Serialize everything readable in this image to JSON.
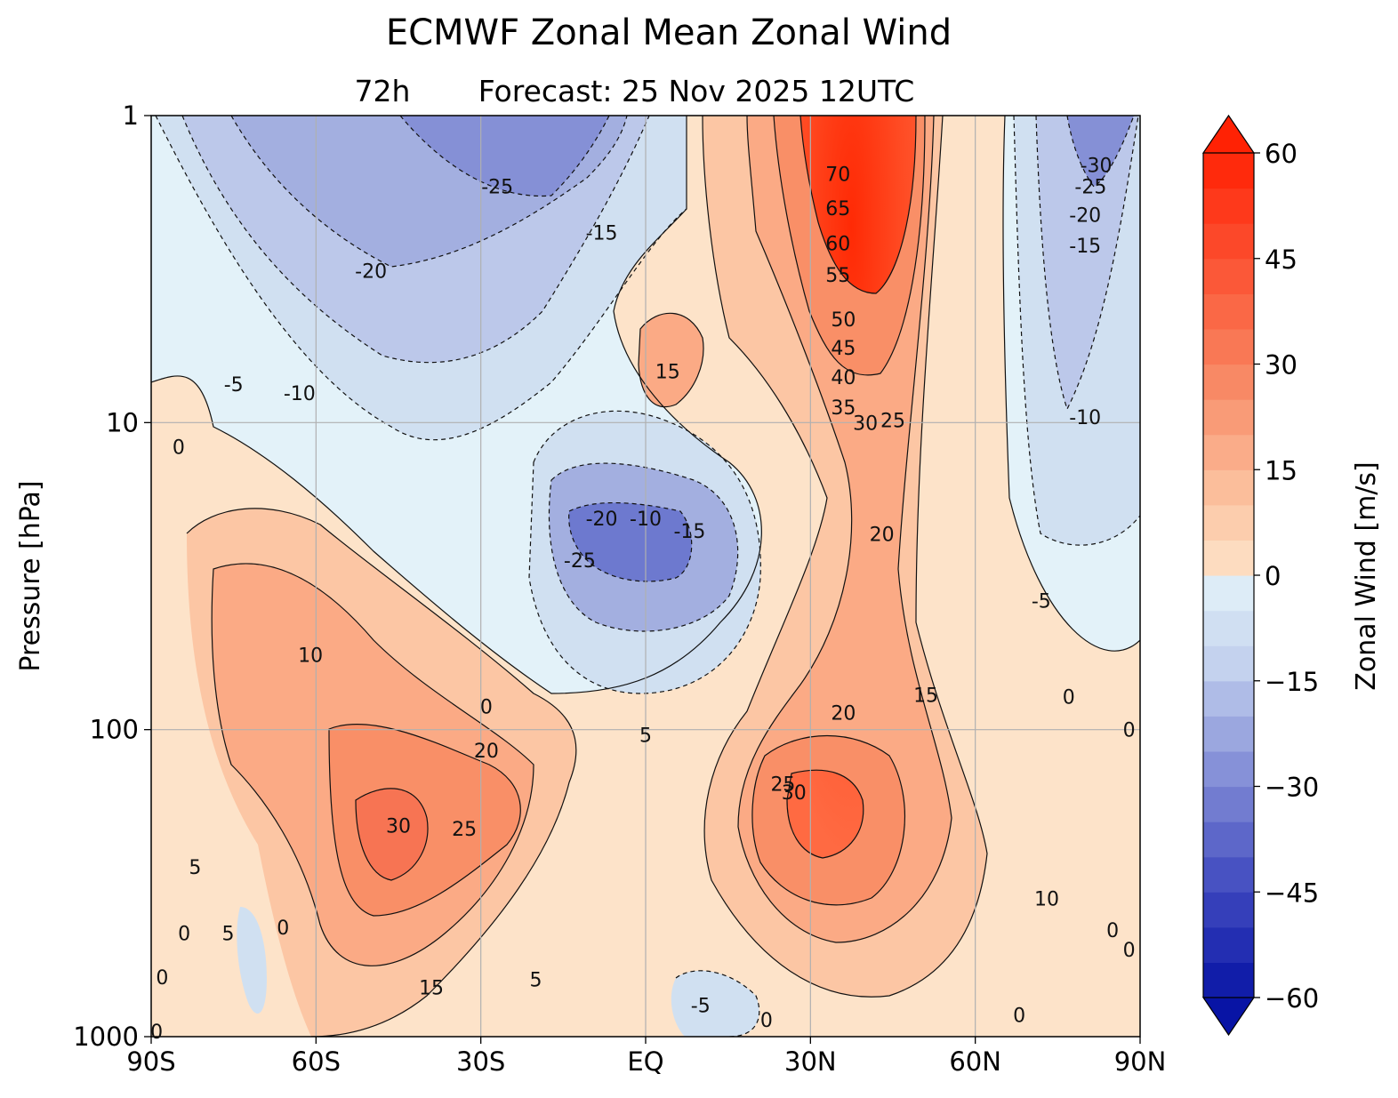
{
  "chart_data": {
    "type": "contour",
    "title": "ECMWF Zonal Mean Zonal Wind",
    "subtitle_left": "72h",
    "subtitle_right": "Forecast:  25 Nov 2025  12UTC",
    "xlabel": "",
    "ylabel": "Pressure [hPa]",
    "x_ticks": [
      "90S",
      "60S",
      "30S",
      "EQ",
      "30N",
      "60N",
      "90N"
    ],
    "x_values": [
      -90,
      -60,
      -30,
      0,
      30,
      60,
      90
    ],
    "y_ticks": [
      "1",
      "10",
      "100",
      "1000"
    ],
    "y_values": [
      1,
      10,
      100,
      1000
    ],
    "y_scale": "log",
    "ylim": [
      1000,
      1
    ],
    "xlim": [
      -90,
      90
    ],
    "grid": true,
    "colorbar": {
      "label": "Zonal Wind [m/s]",
      "ticks": [
        "60",
        "45",
        "30",
        "15",
        "0",
        "−15",
        "−30",
        "−45",
        "−60"
      ],
      "tick_values": [
        60,
        45,
        30,
        15,
        0,
        -15,
        -30,
        -45,
        -60
      ],
      "min": -60,
      "max": 60,
      "step": 5,
      "extend": "both",
      "position": "right"
    },
    "contour_labels": [
      {
        "text": "-25",
        "lat": -27,
        "p": 1.7
      },
      {
        "text": "-15",
        "lat": -8,
        "p": 2.4
      },
      {
        "text": "-20",
        "lat": -50,
        "p": 3.2
      },
      {
        "text": "-5",
        "lat": -75,
        "p": 7.5
      },
      {
        "text": "-10",
        "lat": -63,
        "p": 8.0
      },
      {
        "text": "15",
        "lat": 4,
        "p": 6.8
      },
      {
        "text": "70",
        "lat": 35,
        "p": 1.55
      },
      {
        "text": "65",
        "lat": 35,
        "p": 2.0
      },
      {
        "text": "60",
        "lat": 35,
        "p": 2.6
      },
      {
        "text": "55",
        "lat": 35,
        "p": 3.3
      },
      {
        "text": "50",
        "lat": 36,
        "p": 4.6
      },
      {
        "text": "45",
        "lat": 36,
        "p": 5.7
      },
      {
        "text": "40",
        "lat": 36,
        "p": 7.1
      },
      {
        "text": "35",
        "lat": 36,
        "p": 8.9
      },
      {
        "text": "30",
        "lat": 40,
        "p": 10.0
      },
      {
        "text": "25",
        "lat": 45,
        "p": 9.8
      },
      {
        "text": "-30",
        "lat": 82,
        "p": 1.45
      },
      {
        "text": "-25",
        "lat": 81,
        "p": 1.7
      },
      {
        "text": "-20",
        "lat": 80,
        "p": 2.1
      },
      {
        "text": "-15",
        "lat": 80,
        "p": 2.65
      },
      {
        "text": "-10",
        "lat": 80,
        "p": 9.6
      },
      {
        "text": "0",
        "lat": -85,
        "p": 12
      },
      {
        "text": "-20",
        "lat": -8,
        "p": 20.5
      },
      {
        "text": "-10",
        "lat": 0,
        "p": 20.5
      },
      {
        "text": "-15",
        "lat": 8,
        "p": 22.5
      },
      {
        "text": "-25",
        "lat": -12,
        "p": 28
      },
      {
        "text": "20",
        "lat": 43,
        "p": 23
      },
      {
        "text": "-5",
        "lat": 72,
        "p": 38
      },
      {
        "text": "10",
        "lat": -61,
        "p": 57
      },
      {
        "text": "0",
        "lat": 77,
        "p": 78
      },
      {
        "text": "15",
        "lat": 51,
        "p": 77
      },
      {
        "text": "0",
        "lat": -29,
        "p": 84
      },
      {
        "text": "20",
        "lat": 36,
        "p": 88
      },
      {
        "text": "0",
        "lat": 88,
        "p": 100
      },
      {
        "text": "5",
        "lat": 0,
        "p": 104
      },
      {
        "text": "20",
        "lat": -29,
        "p": 117
      },
      {
        "text": "25",
        "lat": 25,
        "p": 150
      },
      {
        "text": "30",
        "lat": 27,
        "p": 160
      },
      {
        "text": "30",
        "lat": -45,
        "p": 205
      },
      {
        "text": "25",
        "lat": -33,
        "p": 210
      },
      {
        "text": "5",
        "lat": -82,
        "p": 280
      },
      {
        "text": "10",
        "lat": 73,
        "p": 355
      },
      {
        "text": "0",
        "lat": -84,
        "p": 460
      },
      {
        "text": "5",
        "lat": -76,
        "p": 460
      },
      {
        "text": "0",
        "lat": -66,
        "p": 440
      },
      {
        "text": "0",
        "lat": 85,
        "p": 450
      },
      {
        "text": "0",
        "lat": 88,
        "p": 520
      },
      {
        "text": "5",
        "lat": -20,
        "p": 650
      },
      {
        "text": "15",
        "lat": -39,
        "p": 690
      },
      {
        "text": "0",
        "lat": -88,
        "p": 640
      },
      {
        "text": "-5",
        "lat": 10,
        "p": 790
      },
      {
        "text": "0",
        "lat": 22,
        "p": 880
      },
      {
        "text": "0",
        "lat": 68,
        "p": 850
      },
      {
        "text": "0",
        "lat": -89,
        "p": 960
      }
    ]
  }
}
